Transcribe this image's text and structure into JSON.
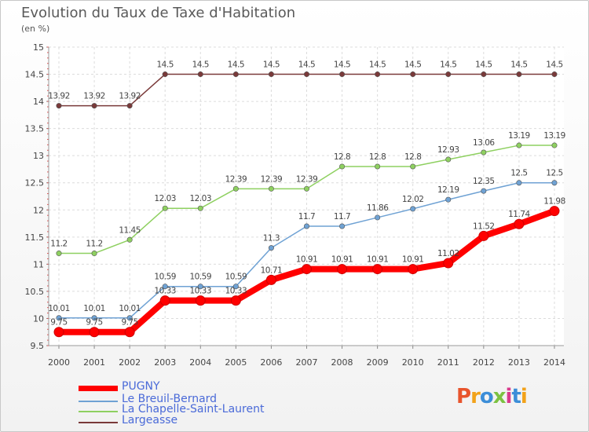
{
  "header": {
    "title": "Evolution du Taux de Taxe d'Habitation",
    "subtitle": "(en %)"
  },
  "logo": {
    "text": "Proxiti",
    "colors": [
      "#e8542c",
      "#f2a21a",
      "#3c8ed8",
      "#7cc242",
      "#d93a8c",
      "#3c8ed8",
      "#f2a21a"
    ]
  },
  "chart_data": {
    "type": "line",
    "title": "Evolution du Taux de Taxe d'Habitation",
    "subtitle": "(en %)",
    "xlabel": "",
    "ylabel": "",
    "x": [
      "2000",
      "2001",
      "2002",
      "2003",
      "2004",
      "2005",
      "2006",
      "2007",
      "2008",
      "2009",
      "2010",
      "2011",
      "2012",
      "2013",
      "2014"
    ],
    "ylim": [
      9.5,
      15
    ],
    "yticks": [
      "9.5",
      "10",
      "10.5",
      "11",
      "11.5",
      "12",
      "12.5",
      "13",
      "13.5",
      "14",
      "14.5",
      "15"
    ],
    "grid": true,
    "legend_position": "bottom-left",
    "series": [
      {
        "name": "PUGNY",
        "color": "#ff0000",
        "values": [
          9.75,
          9.75,
          9.75,
          10.33,
          10.33,
          10.33,
          10.71,
          10.91,
          10.91,
          10.91,
          10.91,
          11.02,
          11.52,
          11.74,
          11.98
        ],
        "labels": [
          "9.75",
          "9.75",
          "9.75",
          "10.33",
          "10.33",
          "10.33",
          "10.71",
          "10.91",
          "10.91",
          "10.91",
          "10.91",
          "11.02",
          "11.52",
          "11.74",
          "11.98"
        ]
      },
      {
        "name": "Le Breuil-Bernard",
        "color": "#6fa2d4",
        "values": [
          10.01,
          10.01,
          10.01,
          10.59,
          10.59,
          10.59,
          11.3,
          11.7,
          11.7,
          11.86,
          12.02,
          12.19,
          12.35,
          12.5,
          12.5
        ],
        "labels": [
          "10.01",
          "10.01",
          "10.01",
          "10.59",
          "10.59",
          "10.59",
          "11.3",
          "11.7",
          "11.7",
          "11.86",
          "12.02",
          "12.19",
          "12.35",
          "12.5",
          "12.5"
        ]
      },
      {
        "name": "La Chapelle-Saint-Laurent",
        "color": "#8ed060",
        "values": [
          11.2,
          11.2,
          11.45,
          12.03,
          12.03,
          12.39,
          12.39,
          12.39,
          12.8,
          12.8,
          12.8,
          12.93,
          13.06,
          13.19,
          13.19
        ],
        "labels": [
          "11.2",
          "11.2",
          "11.45",
          "12.03",
          "12.03",
          "12.39",
          "12.39",
          "12.39",
          "12.8",
          "12.8",
          "12.8",
          "12.93",
          "13.06",
          "13.19",
          "13.19"
        ]
      },
      {
        "name": "Largeasse",
        "color": "#7a3a3a",
        "values": [
          13.92,
          13.92,
          13.92,
          14.5,
          14.5,
          14.5,
          14.5,
          14.5,
          14.5,
          14.5,
          14.5,
          14.5,
          14.5,
          14.5,
          14.5
        ],
        "labels": [
          "13.92",
          "13.92",
          "13.92",
          "14.5",
          "14.5",
          "14.5",
          "14.5",
          "14.5",
          "14.5",
          "14.5",
          "14.5",
          "14.5",
          "14.5",
          "14.5",
          "14.5"
        ]
      }
    ]
  }
}
